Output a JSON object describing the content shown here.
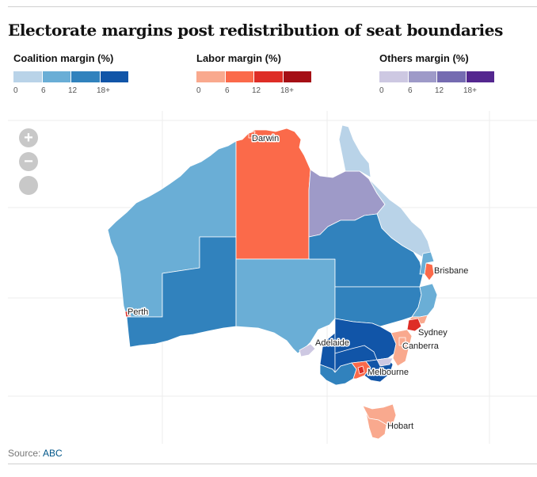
{
  "title": "Electorate margins post redistribution of seat boundaries",
  "legends": [
    {
      "id": "coalition",
      "title": "Coalition margin (%)",
      "colors": [
        "#b9d3e8",
        "#6aaed6",
        "#3182bd",
        "#1155a8"
      ],
      "ticks": [
        "0",
        "6",
        "12",
        "18+"
      ]
    },
    {
      "id": "labor",
      "title": "Labor margin (%)",
      "colors": [
        "#f9a98e",
        "#fb6a4a",
        "#de2d26",
        "#a50f15"
      ],
      "ticks": [
        "0",
        "6",
        "12",
        "18+"
      ]
    },
    {
      "id": "others",
      "title": "Others margin (%)",
      "colors": [
        "#cdc8e2",
        "#9e9ac8",
        "#756bb1",
        "#54278f"
      ],
      "ticks": [
        "0",
        "6",
        "12",
        "18+"
      ]
    }
  ],
  "zoom_controls": {
    "zoom_in": "+",
    "zoom_out": "−"
  },
  "cities": [
    "Darwin",
    "Brisbane",
    "Perth",
    "Sydney",
    "Adelaide",
    "Canberra",
    "Melbourne",
    "Hobart"
  ],
  "source": {
    "label": "Source:",
    "link_text": "ABC"
  }
}
